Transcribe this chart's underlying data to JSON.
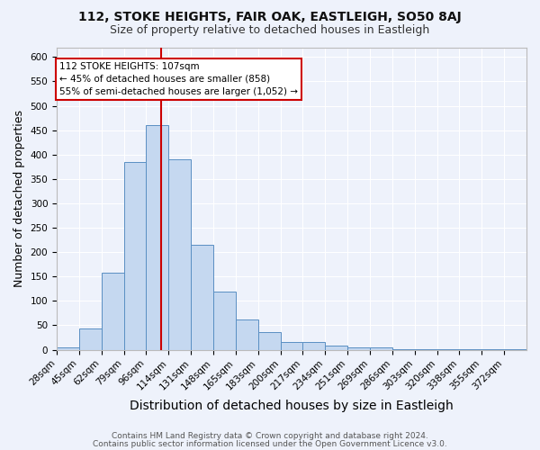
{
  "title": "112, STOKE HEIGHTS, FAIR OAK, EASTLEIGH, SO50 8AJ",
  "subtitle": "Size of property relative to detached houses in Eastleigh",
  "xlabel": "Distribution of detached houses by size in Eastleigh",
  "ylabel": "Number of detached properties",
  "categories": [
    "28sqm",
    "45sqm",
    "62sqm",
    "79sqm",
    "96sqm",
    "114sqm",
    "131sqm",
    "148sqm",
    "165sqm",
    "183sqm",
    "200sqm",
    "217sqm",
    "234sqm",
    "251sqm",
    "269sqm",
    "286sqm",
    "303sqm",
    "320sqm",
    "338sqm",
    "355sqm",
    "372sqm"
  ],
  "values": [
    4,
    44,
    157,
    385,
    460,
    390,
    215,
    120,
    62,
    36,
    15,
    15,
    8,
    5,
    5,
    2,
    1,
    1,
    1,
    1,
    2
  ],
  "bar_color": "#c5d8f0",
  "bar_edge_color": "#5a8fc3",
  "vline_color": "#cc0000",
  "annotation_title": "112 STOKE HEIGHTS: 107sqm",
  "annotation_line1": "← 45% of detached houses are smaller (858)",
  "annotation_line2": "55% of semi-detached houses are larger (1,052) →",
  "annotation_box_color": "#ffffff",
  "annotation_box_edge": "#cc0000",
  "footer1": "Contains HM Land Registry data © Crown copyright and database right 2024.",
  "footer2": "Contains public sector information licensed under the Open Government Licence v3.0.",
  "background_color": "#eef2fb",
  "grid_color": "#ffffff",
  "ylim": [
    0,
    620
  ],
  "yticks": [
    0,
    50,
    100,
    150,
    200,
    250,
    300,
    350,
    400,
    450,
    500,
    550,
    600
  ],
  "title_fontsize": 10,
  "subtitle_fontsize": 9,
  "axis_label_fontsize": 9,
  "tick_fontsize": 7.5,
  "footer_fontsize": 6.5
}
